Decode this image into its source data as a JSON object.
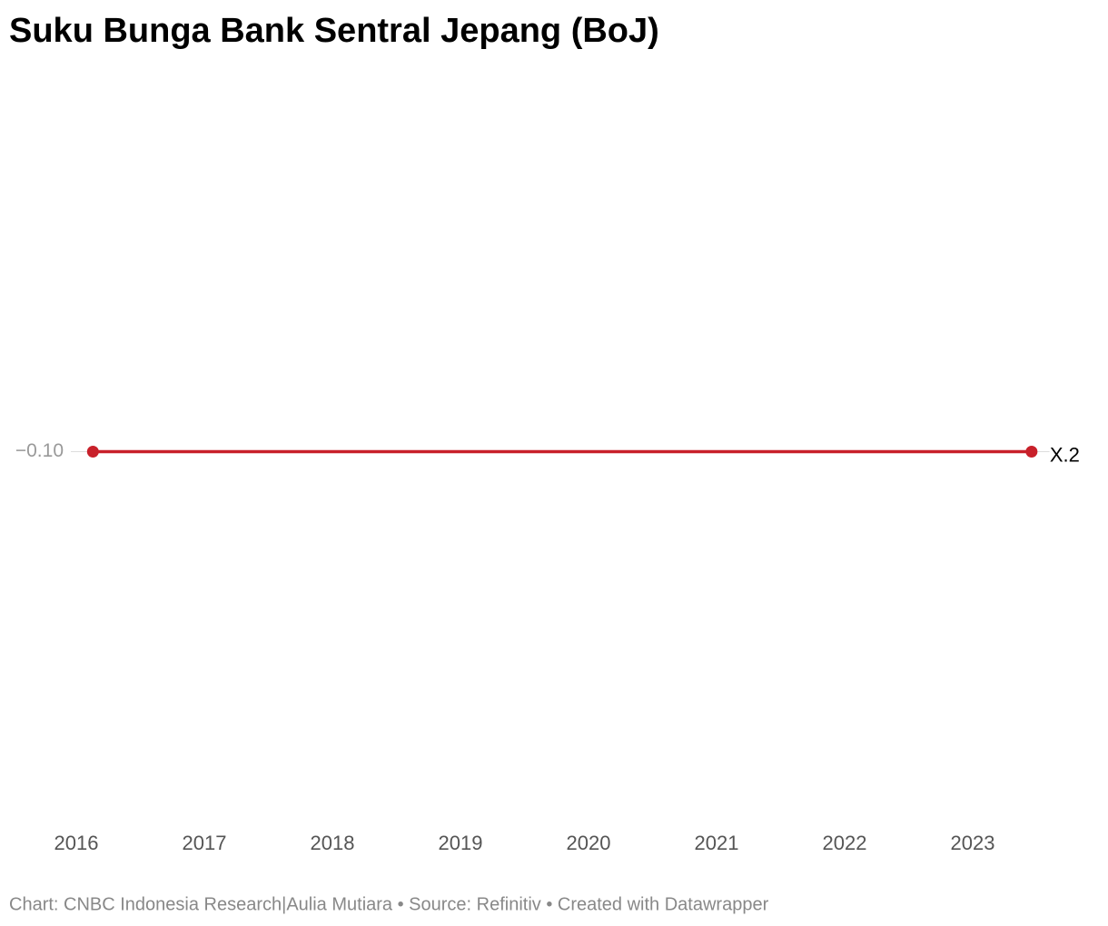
{
  "chart_data": {
    "type": "line",
    "title": "Suku Bunga Bank Sentral Jepang (BoJ)",
    "source": "Chart: CNBC Indonesia Research|Aulia Mutiara • Source: Refinitiv • Created with Datawrapper",
    "x": [
      2016.13,
      2023.46
    ],
    "series": [
      {
        "name": "X.2",
        "color": "#c8202a",
        "values": [
          -0.1,
          -0.1
        ]
      }
    ],
    "xlim": [
      2015.9,
      2023.6
    ],
    "xticks": [
      2016,
      2017,
      2018,
      2019,
      2020,
      2021,
      2022,
      2023
    ],
    "ylim": [
      -0.2,
      0
    ],
    "yticks": [
      {
        "value": -0.1,
        "label": "−0.10"
      }
    ],
    "grid": true
  }
}
